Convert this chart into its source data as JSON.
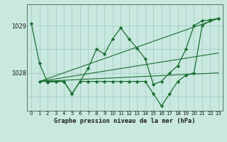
{
  "title": "Graphe pression niveau de la mer (hPa)",
  "bg_color": "#c8e8e0",
  "grid_color": "#a0c8c0",
  "line_color": "#1a6e30",
  "xlim": [
    -0.5,
    23.5
  ],
  "ylim": [
    1027.2,
    1029.45
  ],
  "yticks": [
    1028,
    1029
  ],
  "ytick_labels": [
    "1028",
    "1029"
  ],
  "xticks": [
    0,
    1,
    2,
    3,
    4,
    5,
    6,
    7,
    8,
    9,
    10,
    11,
    12,
    13,
    14,
    15,
    16,
    17,
    18,
    19,
    20,
    21,
    22,
    23
  ],
  "curve1_x": [
    0,
    1,
    2,
    3,
    4,
    5,
    6,
    7,
    8,
    9,
    10,
    11,
    12,
    13,
    14,
    15,
    16,
    17,
    18,
    19,
    20,
    21,
    22,
    23
  ],
  "curve1_y": [
    1029.05,
    1028.2,
    1027.8,
    1027.82,
    1027.82,
    1027.56,
    1027.82,
    1028.1,
    1028.5,
    1028.4,
    1028.72,
    1028.95,
    1028.72,
    1028.52,
    1028.3,
    1027.76,
    1027.82,
    1028.0,
    1028.15,
    1028.5,
    1029.0,
    1029.1,
    1029.12,
    1029.15
  ],
  "curve2_x": [
    1,
    2,
    3,
    4,
    5,
    6,
    7,
    8,
    9,
    10,
    11,
    12,
    13,
    14,
    15,
    16,
    17,
    18,
    19,
    20,
    21,
    22,
    23
  ],
  "curve2_y": [
    1027.82,
    1027.82,
    1027.82,
    1027.82,
    1027.56,
    1027.82,
    1027.82,
    1027.82,
    1027.82,
    1027.82,
    1027.82,
    1027.82,
    1027.82,
    1027.82,
    1027.56,
    1027.3,
    1027.56,
    1027.82,
    1027.95,
    1028.0,
    1029.0,
    1029.1,
    1029.15
  ],
  "trend1_x": [
    1,
    23
  ],
  "trend1_y": [
    1027.82,
    1029.15
  ],
  "trend2_x": [
    1,
    23
  ],
  "trend2_y": [
    1027.82,
    1028.42
  ],
  "trend3_x": [
    1,
    23
  ],
  "trend3_y": [
    1027.82,
    1028.0
  ]
}
